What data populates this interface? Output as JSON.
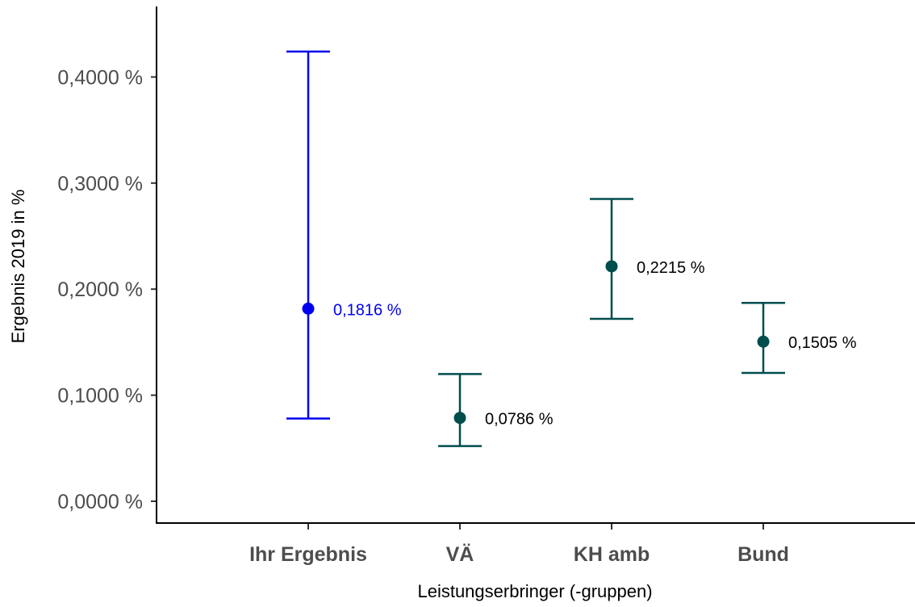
{
  "chart_data": {
    "type": "errorbar",
    "title": "",
    "xlabel": "Leistungserbringer (-gruppen)",
    "ylabel": "Ergebnis 2019 in %",
    "ylim": [
      -0.02,
      0.47
    ],
    "yticks": [
      0.0,
      0.1,
      0.2,
      0.3,
      0.4
    ],
    "ytick_labels": [
      "0,0000 %",
      "0,1000 %",
      "0,2000 %",
      "0,3000 %",
      "0,4000 %"
    ],
    "categories": [
      "Ihr Ergebnis",
      "VÄ",
      "KH amb",
      "Bund"
    ],
    "values": [
      0.1816,
      0.0786,
      0.2215,
      0.1505
    ],
    "lower": [
      0.078,
      0.052,
      0.172,
      0.121
    ],
    "upper": [
      0.424,
      0.12,
      0.285,
      0.187
    ],
    "data_labels": [
      "0,1816 %",
      "0,0786 %",
      "0,2215 %",
      "0,1505 %"
    ],
    "colors": [
      "#0000ee",
      "#004d4d",
      "#004d4d",
      "#004d4d"
    ],
    "label_colors": [
      "#0000ee",
      "#000000",
      "#000000",
      "#000000"
    ],
    "grid": false,
    "legend": "none"
  }
}
